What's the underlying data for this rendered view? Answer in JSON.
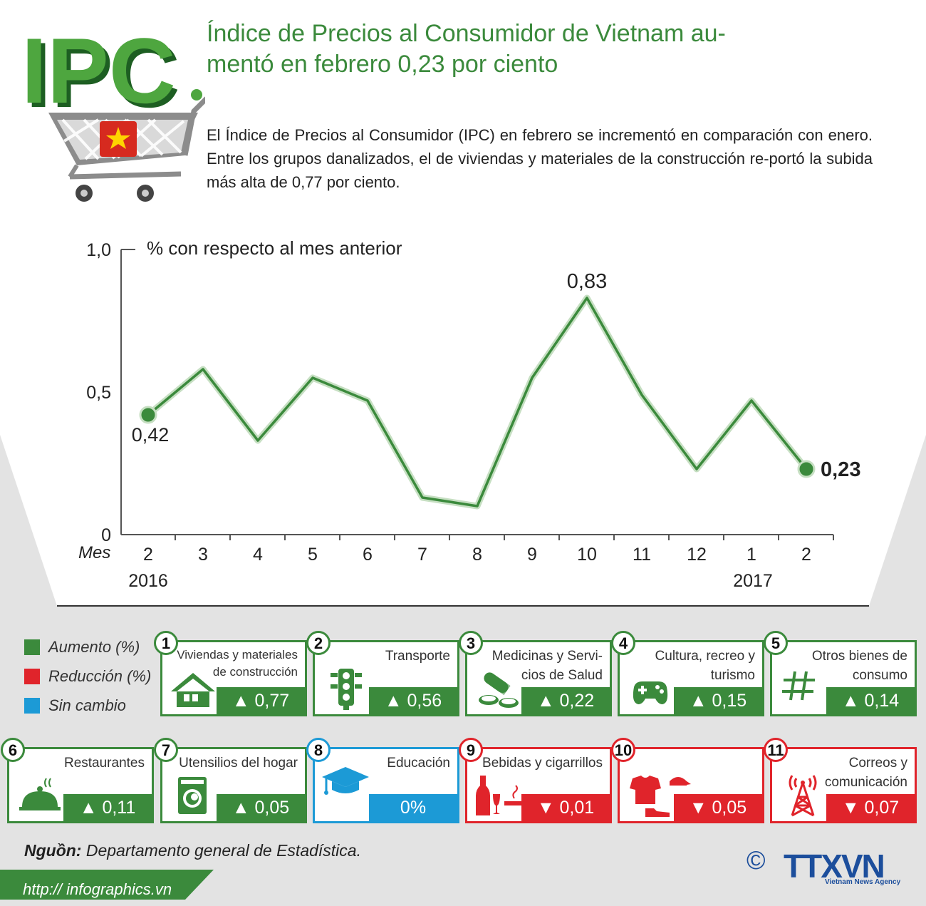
{
  "header": {
    "logo_text": "IPC",
    "title": "Índice de Precios al Consumidor  de Vietnam au-mentó en febrero 0,23 por ciento",
    "intro": "El Índice de Precios al Consumidor (IPC) en febrero se incrementó en comparación con enero. Entre los grupos danalizados, el de viviendas y materiales de la construcción re-portó la subida más alta de 0,77 por ciento."
  },
  "colors": {
    "green": "#3b8a3c",
    "red": "#e0242b",
    "blue": "#1c9ad6",
    "grey": "#e3e3e3",
    "navy": "#1c4e9c"
  },
  "chart_data": {
    "type": "line",
    "title": "% con respecto al mes anterior",
    "xlabel": "Mes",
    "x": [
      "2",
      "3",
      "4",
      "5",
      "6",
      "7",
      "8",
      "9",
      "10",
      "11",
      "12",
      "1",
      "2"
    ],
    "year_labels": [
      {
        "x_index": 0,
        "label": "2016"
      },
      {
        "x_index": 11,
        "label": "2017"
      }
    ],
    "values": [
      0.42,
      0.58,
      0.33,
      0.55,
      0.47,
      0.13,
      0.1,
      0.55,
      0.83,
      0.49,
      0.23,
      0.47,
      0.23
    ],
    "data_labels": [
      {
        "index": 0,
        "text": "0,42"
      },
      {
        "index": 8,
        "text": "0,83"
      },
      {
        "index": 12,
        "text": "0,23"
      }
    ],
    "yticks": [
      "0",
      "0,5",
      "1,0"
    ],
    "ylim": [
      0,
      1.0
    ],
    "grid": false
  },
  "legend": [
    {
      "label": "Aumento (%)",
      "color": "#3b8a3c"
    },
    {
      "label": "Reducción (%)",
      "color": "#e0242b"
    },
    {
      "label": "Sin cambio",
      "color": "#1c9ad6"
    }
  ],
  "categories": [
    {
      "num": "1",
      "label": "Viviendas y materiales de construcción",
      "value": "▲ 0,77",
      "status": "green",
      "icon": "house-icon"
    },
    {
      "num": "2",
      "label": "Transporte",
      "value": "▲ 0,56",
      "status": "green",
      "icon": "traffic-light-icon"
    },
    {
      "num": "3",
      "label": "Medicinas y Servi-cios de Salud",
      "value": "▲ 0,22",
      "status": "green",
      "icon": "pills-icon"
    },
    {
      "num": "4",
      "label": "Cultura, recreo y turismo",
      "value": "▲ 0,15",
      "status": "green",
      "icon": "gamepad-icon"
    },
    {
      "num": "5",
      "label": "Otros bienes de consumo",
      "value": "▲ 0,14",
      "status": "green",
      "icon": "hash-icon"
    },
    {
      "num": "6",
      "label": "Restaurantes",
      "value": "▲ 0,11",
      "status": "green",
      "icon": "cloche-icon"
    },
    {
      "num": "7",
      "label": "Utensilios del hogar",
      "value": "▲ 0,05",
      "status": "green",
      "icon": "washing-machine-icon"
    },
    {
      "num": "8",
      "label": "Educación",
      "value": "0%",
      "status": "blue",
      "icon": "graduation-cap-icon"
    },
    {
      "num": "9",
      "label": "Bebidas y cigarrillos",
      "value": "▼ 0,01",
      "status": "red",
      "icon": "bottle-cigarette-icon"
    },
    {
      "num": "10",
      "label": "",
      "value": "▼ 0,05",
      "status": "red",
      "icon": "clothes-icon"
    },
    {
      "num": "11",
      "label": "Correos y comunicación",
      "value": "▼ 0,07",
      "status": "red",
      "icon": "antenna-icon"
    }
  ],
  "footer": {
    "source_label": "Nguồn:",
    "source_text": "Departamento general de Estadística.",
    "url": "http:// infographics.vn",
    "copyright": "©",
    "agency_logo": "TTXVN",
    "agency_sub": "Vietnam News Agency"
  }
}
